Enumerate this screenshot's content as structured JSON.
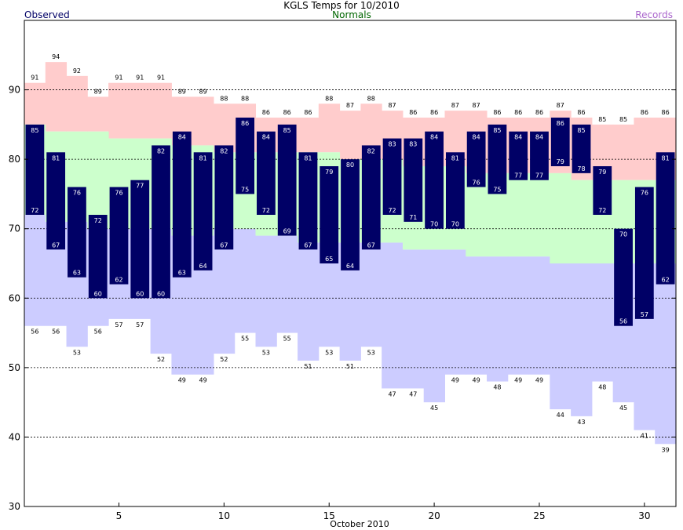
{
  "header": {
    "title": "KGLS Temps for 10/2010",
    "observed_label": "Observed",
    "normals_label": "Normals",
    "records_label": "Records"
  },
  "colors": {
    "observed": "#000066",
    "normals_band": "#ccffcc",
    "record_high_band": "#ffcccc",
    "record_low_band": "#ccccff",
    "normals_text": "#006600",
    "records_text": "#aa66cc",
    "observed_text": "#000066"
  },
  "chart_data": {
    "type": "bar",
    "xlabel": "October 2010",
    "ylabel": "",
    "ylim": [
      30,
      100
    ],
    "yticks": [
      30,
      40,
      50,
      60,
      70,
      80,
      90
    ],
    "xticks": [
      5,
      10,
      15,
      20,
      25,
      30
    ],
    "grid": "horizontal-dashed",
    "days": [
      1,
      2,
      3,
      4,
      5,
      6,
      7,
      8,
      9,
      10,
      11,
      12,
      13,
      14,
      15,
      16,
      17,
      18,
      19,
      20,
      21,
      22,
      23,
      24,
      25,
      26,
      27,
      28,
      29,
      30,
      31
    ],
    "observed_high": [
      85,
      81,
      76,
      72,
      76,
      77,
      82,
      84,
      81,
      82,
      86,
      84,
      85,
      81,
      79,
      80,
      82,
      83,
      83,
      84,
      81,
      84,
      85,
      84,
      84,
      86,
      85,
      79,
      70,
      76,
      81
    ],
    "observed_low": [
      72,
      67,
      63,
      60,
      62,
      60,
      60,
      63,
      64,
      67,
      75,
      72,
      69,
      67,
      65,
      64,
      67,
      72,
      71,
      70,
      70,
      76,
      75,
      77,
      77,
      79,
      78,
      72,
      56,
      57,
      62
    ],
    "record_high": [
      91,
      94,
      92,
      89,
      91,
      91,
      91,
      89,
      89,
      88,
      88,
      86,
      86,
      86,
      88,
      87,
      88,
      87,
      86,
      86,
      87,
      87,
      86,
      86,
      86,
      87,
      86,
      85,
      85,
      86,
      86
    ],
    "record_low": [
      56,
      56,
      53,
      56,
      57,
      57,
      52,
      49,
      49,
      52,
      55,
      53,
      55,
      51,
      53,
      51,
      53,
      47,
      47,
      45,
      49,
      49,
      48,
      49,
      49,
      44,
      43,
      48,
      45,
      41,
      39
    ],
    "normal_high": [
      85,
      84,
      84,
      84,
      83,
      83,
      83,
      82,
      82,
      81,
      81,
      81,
      81,
      81,
      81,
      80,
      80,
      80,
      79,
      79,
      79,
      78,
      78,
      78,
      78,
      78,
      77,
      77,
      77,
      77,
      77
    ],
    "normal_low": [
      72,
      71,
      71,
      70,
      70,
      70,
      70,
      69,
      69,
      70,
      70,
      69,
      69,
      68,
      68,
      68,
      68,
      68,
      67,
      67,
      67,
      66,
      66,
      66,
      66,
      65,
      65,
      65,
      65,
      65,
      65
    ]
  }
}
